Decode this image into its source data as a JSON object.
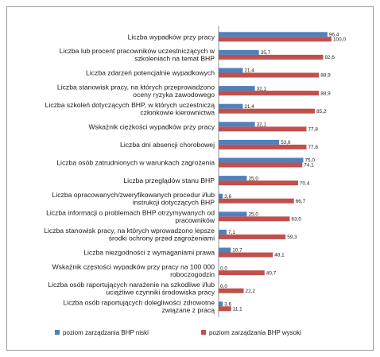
{
  "chart_data": {
    "type": "bar",
    "orientation": "horizontal",
    "categories": [
      [
        "Liczba wypadków przy pracy"
      ],
      [
        "Liczba lub procent pracowników uczestniczących w",
        "szkoleniach na temat BHP"
      ],
      [
        "Liczba zdarzeń potencjalnie wypadkowych"
      ],
      [
        "Liczba stanowisk pracy, na których przeprowadzono",
        "oceny ryzyka zawodowego"
      ],
      [
        "Liczba szkoleń dotyczących BHP, w których uczestniczą",
        "członkowie kierownictwa"
      ],
      [
        "Wskaźnik ciężkości wypadków przy pracy"
      ],
      [
        "Liczba dni absencji chorobowej"
      ],
      [
        "Liczba osób zatrudnionych w warunkach zagrożenia"
      ],
      [
        "Liczba przeglądów stanu BHP"
      ],
      [
        "Liczba opracowanych/zweryfikowanych procedur i/lub",
        "instrukcji dotyczących BHP"
      ],
      [
        "Liczba informacji o problemach BHP otrzymywanych od",
        "pracowników"
      ],
      [
        "Liczba stanowisk pracy, na których wprowadzono lepsze",
        "środki ochrony przed zagrożeniami"
      ],
      [
        "Liczba niezgodności z wymaganiami prawa"
      ],
      [
        "Wskaźnik częstości wypadków przy pracy na 100 000",
        "roboczogodzin"
      ],
      [
        "Liczba osób raportujących narażenie na szkodliwe i/lub",
        "uciążliwe czynniki środowiska pracy"
      ],
      [
        "Liczba osób raportujących  dolegliwości zdrowotne",
        "związane z pracą"
      ]
    ],
    "series": [
      {
        "name": "poziom zarządzania BHP niski",
        "color": "#4f81bd",
        "values": [
          96.4,
          35.7,
          21.4,
          32.1,
          21.4,
          32.1,
          53.6,
          75.0,
          25.0,
          3.6,
          25.0,
          7.1,
          10.7,
          0.0,
          0.0,
          3.6
        ],
        "labels": [
          "96,4",
          "35,7",
          "21,4",
          "32,1",
          "21,4",
          "32,1",
          "53,6",
          "75,0",
          "25,0",
          "3,6",
          "25,0",
          "7,1",
          "10,7",
          "0,0",
          "0,0",
          "3,6"
        ]
      },
      {
        "name": "poziom zarządzania BHP wysoki",
        "color": "#c0504d",
        "values": [
          100.0,
          92.6,
          88.9,
          88.9,
          85.2,
          77.8,
          77.8,
          74.1,
          70.4,
          66.7,
          63.0,
          59.3,
          48.1,
          40.7,
          22.2,
          11.1
        ],
        "labels": [
          "100,0",
          "92,6",
          "88,9",
          "88,9",
          "85,2",
          "77,8",
          "77,8",
          "74,1",
          "70,4",
          "66,7",
          "63,0",
          "59,3",
          "48,1",
          "40,7",
          "22,2",
          "11,1"
        ]
      }
    ],
    "xlim": [
      0,
      100
    ],
    "grid": false,
    "legend_position": "bottom"
  }
}
